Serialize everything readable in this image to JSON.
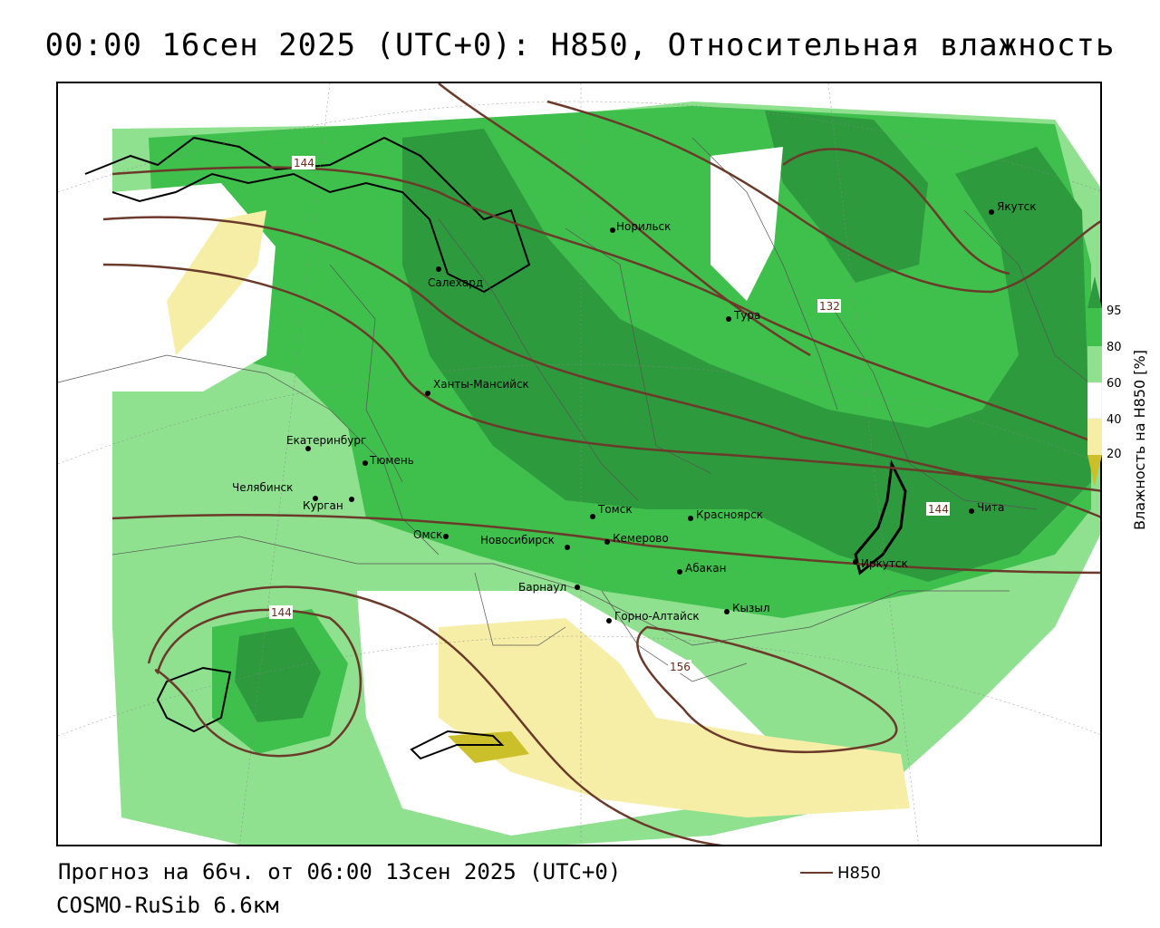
{
  "title": "00:00 16сен 2025 (UTC+0): H850, Относительная влажность",
  "footer": {
    "forecast": "Прогноз на 66ч. от 06:00 13сен 2025 (UTC+0)",
    "model": "COSMO-RuSib 6.6км"
  },
  "legend": {
    "line_label": "H850",
    "line_color": "#6b3a2a"
  },
  "colorbar": {
    "title": "Влажность на H850 [%]",
    "ticks": [
      "95",
      "80",
      "60",
      "40",
      "20"
    ],
    "colors": [
      "#2e9a3e",
      "#3fbf4c",
      "#8fe08f",
      "#ffffff",
      "#f6eea6",
      "#cbbf2a"
    ]
  },
  "cities": [
    {
      "name": "Норильск"
    },
    {
      "name": "Якутск"
    },
    {
      "name": "Салехард"
    },
    {
      "name": "Тура"
    },
    {
      "name": "Ханты-Мансийск"
    },
    {
      "name": "Екатеринбург"
    },
    {
      "name": "Тюмень"
    },
    {
      "name": "Челябинск"
    },
    {
      "name": "Курган"
    },
    {
      "name": "Омск"
    },
    {
      "name": "Новосибирск"
    },
    {
      "name": "Томск"
    },
    {
      "name": "Кемерово"
    },
    {
      "name": "Красноярск"
    },
    {
      "name": "Абакан"
    },
    {
      "name": "Барнаул"
    },
    {
      "name": "Горно-Алтайск"
    },
    {
      "name": "Кызыл"
    },
    {
      "name": "Иркутск"
    },
    {
      "name": "Чита"
    }
  ],
  "contour_labels": [
    "144",
    "132",
    "144",
    "144",
    "156"
  ]
}
